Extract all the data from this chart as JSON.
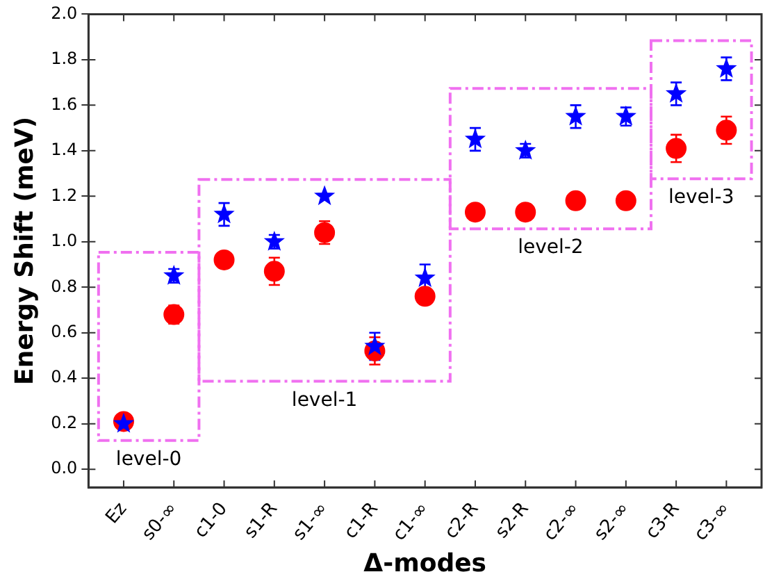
{
  "chart_data": {
    "type": "scatter",
    "xlabel": "Δ-modes",
    "ylabel": "Energy Shift (meV)",
    "categories": [
      "Ez",
      "s0-∞",
      "c1-0",
      "s1-R",
      "s1-∞",
      "c1-R",
      "c1-∞",
      "c2-R",
      "s2-R",
      "c2-∞",
      "s2-∞",
      "c3-R",
      "c3-∞"
    ],
    "series": [
      {
        "color": "#ff0000",
        "marker": "circle",
        "values": [
          0.21,
          0.68,
          0.92,
          0.87,
          1.04,
          0.52,
          0.76,
          1.13,
          1.13,
          1.18,
          1.18,
          1.41,
          1.49
        ],
        "errors": [
          null,
          0.04,
          null,
          0.06,
          0.05,
          0.06,
          null,
          null,
          null,
          null,
          null,
          0.06,
          0.06
        ]
      },
      {
        "color": "#0000ff",
        "marker": "star",
        "values": [
          0.2,
          0.85,
          1.12,
          1.0,
          1.2,
          0.54,
          0.84,
          1.45,
          1.4,
          1.55,
          1.55,
          1.65,
          1.76
        ],
        "errors": [
          null,
          0.03,
          0.05,
          0.03,
          null,
          0.06,
          0.06,
          0.05,
          0.03,
          0.05,
          0.04,
          0.05,
          0.05
        ]
      }
    ],
    "ylim": [
      -0.08,
      2.0
    ],
    "yticks": [
      {
        "value": 0,
        "label": "0.0"
      },
      {
        "value": 0.2,
        "label": "0.2"
      },
      {
        "value": 0.4,
        "label": "0.4"
      },
      {
        "value": 0.6,
        "label": "0.6"
      },
      {
        "value": 0.8,
        "label": "0.8"
      },
      {
        "value": 1,
        "label": "1.0"
      },
      {
        "value": 1.2,
        "label": "1.2"
      },
      {
        "value": 1.4,
        "label": "1.4"
      },
      {
        "value": 1.6,
        "label": "1.6"
      },
      {
        "value": 1.8,
        "label": "1.8"
      },
      {
        "value": 2,
        "label": "2.0"
      }
    ],
    "annotations": [
      "level-0",
      "level-1",
      "level-2",
      "level-3"
    ],
    "grid": false,
    "legend": false
  }
}
